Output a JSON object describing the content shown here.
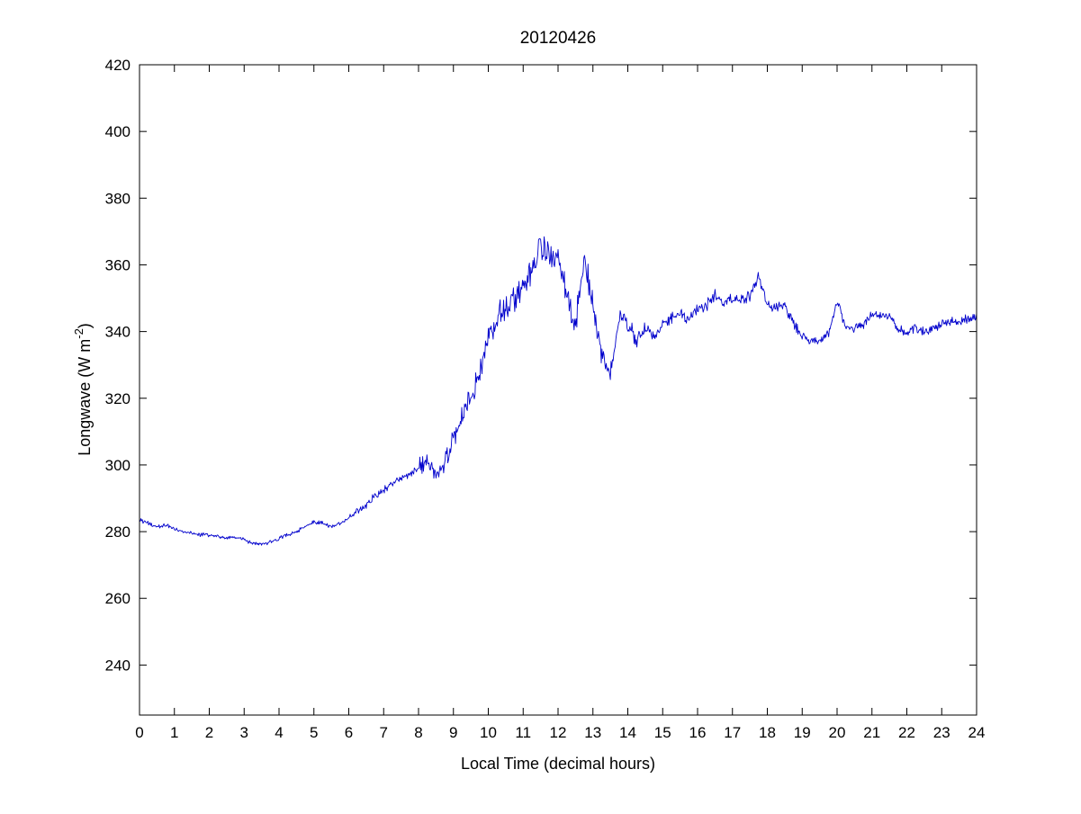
{
  "chart_data": {
    "type": "line",
    "title": "20120426",
    "xlabel": "Local Time (decimal hours)",
    "ylabel": "Longwave (W m^-2)",
    "ylabel_parts": {
      "pre": "Longwave (W m",
      "sup": "-2",
      "post": ")"
    },
    "xlim": [
      0,
      24
    ],
    "ylim": [
      225,
      420
    ],
    "xticks": [
      0,
      1,
      2,
      3,
      4,
      5,
      6,
      7,
      8,
      9,
      10,
      11,
      12,
      13,
      14,
      15,
      16,
      17,
      18,
      19,
      20,
      21,
      22,
      23,
      24
    ],
    "yticks": [
      240,
      260,
      280,
      300,
      320,
      340,
      360,
      380,
      400,
      420
    ],
    "grid": false,
    "legend": null,
    "line_color": "#0000cc",
    "series": [
      {
        "name": "longwave",
        "x": [
          0,
          0.25,
          0.5,
          0.75,
          1,
          1.25,
          1.5,
          1.75,
          2,
          2.25,
          2.5,
          2.75,
          3,
          3.25,
          3.5,
          3.75,
          4,
          4.25,
          4.5,
          4.75,
          5,
          5.25,
          5.5,
          5.75,
          6,
          6.25,
          6.5,
          6.75,
          7,
          7.25,
          7.5,
          7.75,
          8,
          8.25,
          8.5,
          8.75,
          9,
          9.25,
          9.5,
          9.75,
          10,
          10.25,
          10.5,
          10.75,
          11,
          11.25,
          11.5,
          11.75,
          12,
          12.25,
          12.5,
          12.75,
          13,
          13.25,
          13.5,
          13.75,
          14,
          14.25,
          14.5,
          14.75,
          15,
          15.25,
          15.5,
          15.75,
          16,
          16.25,
          16.5,
          16.75,
          17,
          17.25,
          17.5,
          17.75,
          18,
          18.25,
          18.5,
          18.75,
          19,
          19.25,
          19.5,
          19.75,
          20,
          20.25,
          20.5,
          20.75,
          21,
          21.25,
          21.5,
          21.75,
          22,
          22.25,
          22.5,
          22.75,
          23,
          23.25,
          23.5,
          23.75,
          24
        ],
        "y": [
          283.5,
          282.5,
          281.5,
          282,
          281,
          280,
          279.5,
          279,
          279,
          278.5,
          278,
          278.5,
          277.5,
          276.5,
          276,
          277,
          278,
          279,
          280,
          281.5,
          283,
          282.5,
          281.5,
          282.5,
          284,
          286,
          288,
          290.5,
          292.5,
          294.5,
          296,
          297,
          299,
          302,
          297,
          301,
          308,
          315,
          320,
          328,
          337,
          344,
          346,
          350,
          354,
          358,
          365,
          363,
          363,
          352,
          342,
          362,
          348,
          333,
          327,
          344,
          343,
          337,
          341,
          339,
          342,
          344,
          345,
          344,
          347,
          348,
          351,
          348,
          350,
          349,
          351,
          357,
          348,
          347,
          348,
          342,
          339,
          337,
          337.5,
          339,
          349,
          341,
          341,
          342,
          345,
          345,
          345,
          340.5,
          340,
          341,
          340,
          341,
          342,
          343,
          343,
          344,
          344
        ]
      }
    ],
    "noise_profile": [
      {
        "from": 0,
        "to": 6,
        "amp": 0.7
      },
      {
        "from": 6,
        "to": 8,
        "amp": 1.3
      },
      {
        "from": 8,
        "to": 9.5,
        "amp": 4.0
      },
      {
        "from": 9.5,
        "to": 13.0,
        "amp": 5.0
      },
      {
        "from": 13.0,
        "to": 14.5,
        "amp": 3.5
      },
      {
        "from": 14.5,
        "to": 19.0,
        "amp": 2.2
      },
      {
        "from": 19.0,
        "to": 24.01,
        "amp": 1.6
      }
    ]
  }
}
